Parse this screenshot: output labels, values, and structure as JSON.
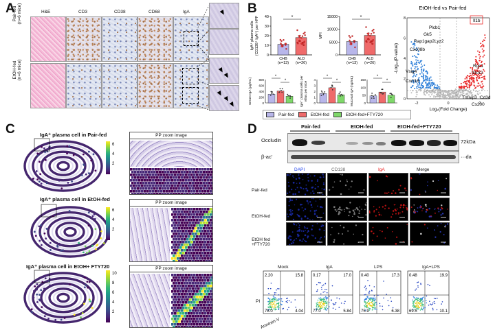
{
  "panels": {
    "a": "A",
    "b": "B",
    "c": "C",
    "d": "D"
  },
  "panelA": {
    "columns": [
      "H&E",
      "CD3",
      "CD38",
      "CD68",
      "IgA"
    ],
    "rows": [
      "Pair-fed\n(n=6 mice)",
      "EtOH-fed\n(n=6 mice)"
    ]
  },
  "panelB": {
    "bar1": {
      "ylabel": "IgA⁺ plasma cells\n(CD138⁺ IgA⁺) per HPF",
      "ticks": [
        "0",
        "10",
        "20",
        "30",
        "40"
      ],
      "cats": [
        "CHB\n(n=13)",
        "ALD\n(n=26)"
      ],
      "star": "*",
      "chart_data": {
        "type": "bar",
        "categories": [
          "CHB (n=13)",
          "ALD (n=26)"
        ],
        "values": [
          11,
          18
        ],
        "ylim": [
          0,
          40
        ]
      }
    },
    "bar2": {
      "ylabel": "MFI",
      "ticks": [
        "0",
        "5000",
        "10000",
        "15000"
      ],
      "cats": [
        "CHB\n(n=13)",
        "ALD\n(n=26)"
      ],
      "star": "*",
      "chart_data": {
        "type": "bar",
        "categories": [
          "CHB (n=13)",
          "ALD (n=26)"
        ],
        "values": [
          5200,
          7600
        ],
        "ylim": [
          0,
          15000
        ]
      }
    },
    "small1": {
      "ylabel": "Serum IgA (µg/mL)",
      "ticks": [
        "0",
        "200",
        "400",
        "600",
        "800"
      ],
      "stars": [
        "*",
        "*"
      ],
      "chart_data": {
        "type": "bar",
        "categories": [
          "Pair-fed",
          "EtOH-fed",
          "EtOH-fed+FTY720"
        ],
        "values": [
          300,
          410,
          230
        ],
        "ylim": [
          0,
          800
        ]
      }
    },
    "small2": {
      "ylabel": "IgA⁺ plasma cells per\nvillus per mice",
      "ticks": [
        "0",
        "1",
        "2",
        "3",
        "4"
      ],
      "stars": [
        "*",
        "*"
      ],
      "chart_data": {
        "type": "bar",
        "categories": [
          "Pair-fed",
          "EtOH-fed",
          "EtOH-fed+FTY720"
        ],
        "values": [
          1.6,
          2.6,
          1.4
        ],
        "ylim": [
          0,
          4
        ]
      }
    },
    "small3": {
      "ylabel": "Mucosal IgA (ng/mL)",
      "ticks": [
        "0",
        "50",
        "100",
        "150"
      ],
      "stars": [
        "*",
        "*"
      ],
      "chart_data": {
        "type": "bar",
        "categories": [
          "Pair-fed",
          "EtOH-fed",
          "EtOH-fed+FTY720"
        ],
        "values": [
          45,
          70,
          50
        ],
        "ylim": [
          0,
          150
        ]
      }
    },
    "legend": [
      "Pair-fed",
      "EtOH-fed",
      "EtOH-fed+FTY720"
    ],
    "legendColors": [
      "#b8b6ea",
      "#ef6a6a",
      "#7fd86a"
    ],
    "volcano": {
      "title": "EtOH-fed vs Pair-fed",
      "xlabel": "Log₂(Fold Change)",
      "ylabel": "-Log₁₀(P-value)",
      "xticks": [
        "-2",
        "0",
        "2"
      ],
      "yticks": [
        "0",
        "2",
        "4",
        "6",
        "8"
      ],
      "genes_left": [
        "Plcb1",
        "Gk5",
        "Rap1gap2",
        "Lyz2",
        "Cxc08b",
        "Vsig4",
        "Cxcl16"
      ],
      "genes_right": [
        "Il1b",
        "Rgs1",
        "Il10r2",
        "Tnfaip3",
        "Cd3d",
        "Cs200"
      ],
      "chart_data": {
        "type": "scatter",
        "xlim": [
          -3,
          3
        ],
        "ylim": [
          0,
          8
        ]
      }
    }
  },
  "panelC": {
    "titles": [
      "IgA⁺ plasma cell in Pair-fed",
      "IgA⁺ plasma cell in EtOH-fed",
      "IgA⁺ plasma cell in EtOH+ FTY720"
    ],
    "zoom": "PP zoom image",
    "scale1": [
      "6",
      "4",
      "2"
    ],
    "scale2": [
      "6",
      "4",
      "2"
    ],
    "scale3": [
      "10",
      "8",
      "6",
      "4",
      "2"
    ]
  },
  "panelD": {
    "blot": {
      "groups": [
        "Pair-fed",
        "EtOH-fed",
        "EtOH-fed+FTY720"
      ],
      "rows": [
        "Occludin",
        "β-ac'"
      ],
      "kda": [
        "72kDa",
        "···da"
      ]
    },
    "if": {
      "cols": [
        "DAPI",
        "CD138",
        "IgA",
        "Merge"
      ],
      "rows": [
        "Pair-fed",
        "EtOH-fed",
        "EtOH fed\n+FTY720"
      ]
    },
    "flow": {
      "titles": [
        "Mock",
        "IgA",
        "LPS",
        "IgA+LPS"
      ],
      "ylabel": "PI",
      "xlabel": "Annexin-V",
      "q": [
        [
          "2.20",
          "15.8",
          "78.0",
          "4.04"
        ],
        [
          "0.17",
          "17.0",
          "77.0",
          "5.84"
        ],
        [
          "0.40",
          "17.3",
          "75.9",
          "6.38"
        ],
        [
          "0.48",
          "19.9",
          "69.5",
          "10.1"
        ]
      ]
    }
  }
}
